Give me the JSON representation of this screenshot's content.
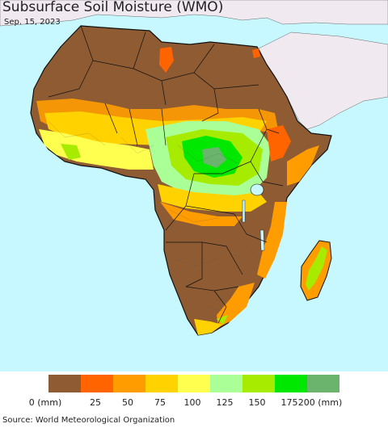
{
  "map": {
    "title": "Subsurface Soil Moisture (WMO)",
    "date": "Sep. 15, 2023",
    "source": "Source: World Meteorological Organization",
    "colors": {
      "ocean": "#c8f8ff",
      "nodata_land": "#f0eaf0"
    }
  },
  "legend": {
    "unit_label": "0 (mm)",
    "end_label": "200 (mm)",
    "ticks": [
      "25",
      "50",
      "75",
      "100",
      "125",
      "150",
      "175"
    ],
    "colors": [
      "#8e5b32",
      "#ff6400",
      "#ff9c00",
      "#ffd200",
      "#ffff50",
      "#aaff96",
      "#a6eb00",
      "#00e800",
      "#6ab46e"
    ]
  }
}
